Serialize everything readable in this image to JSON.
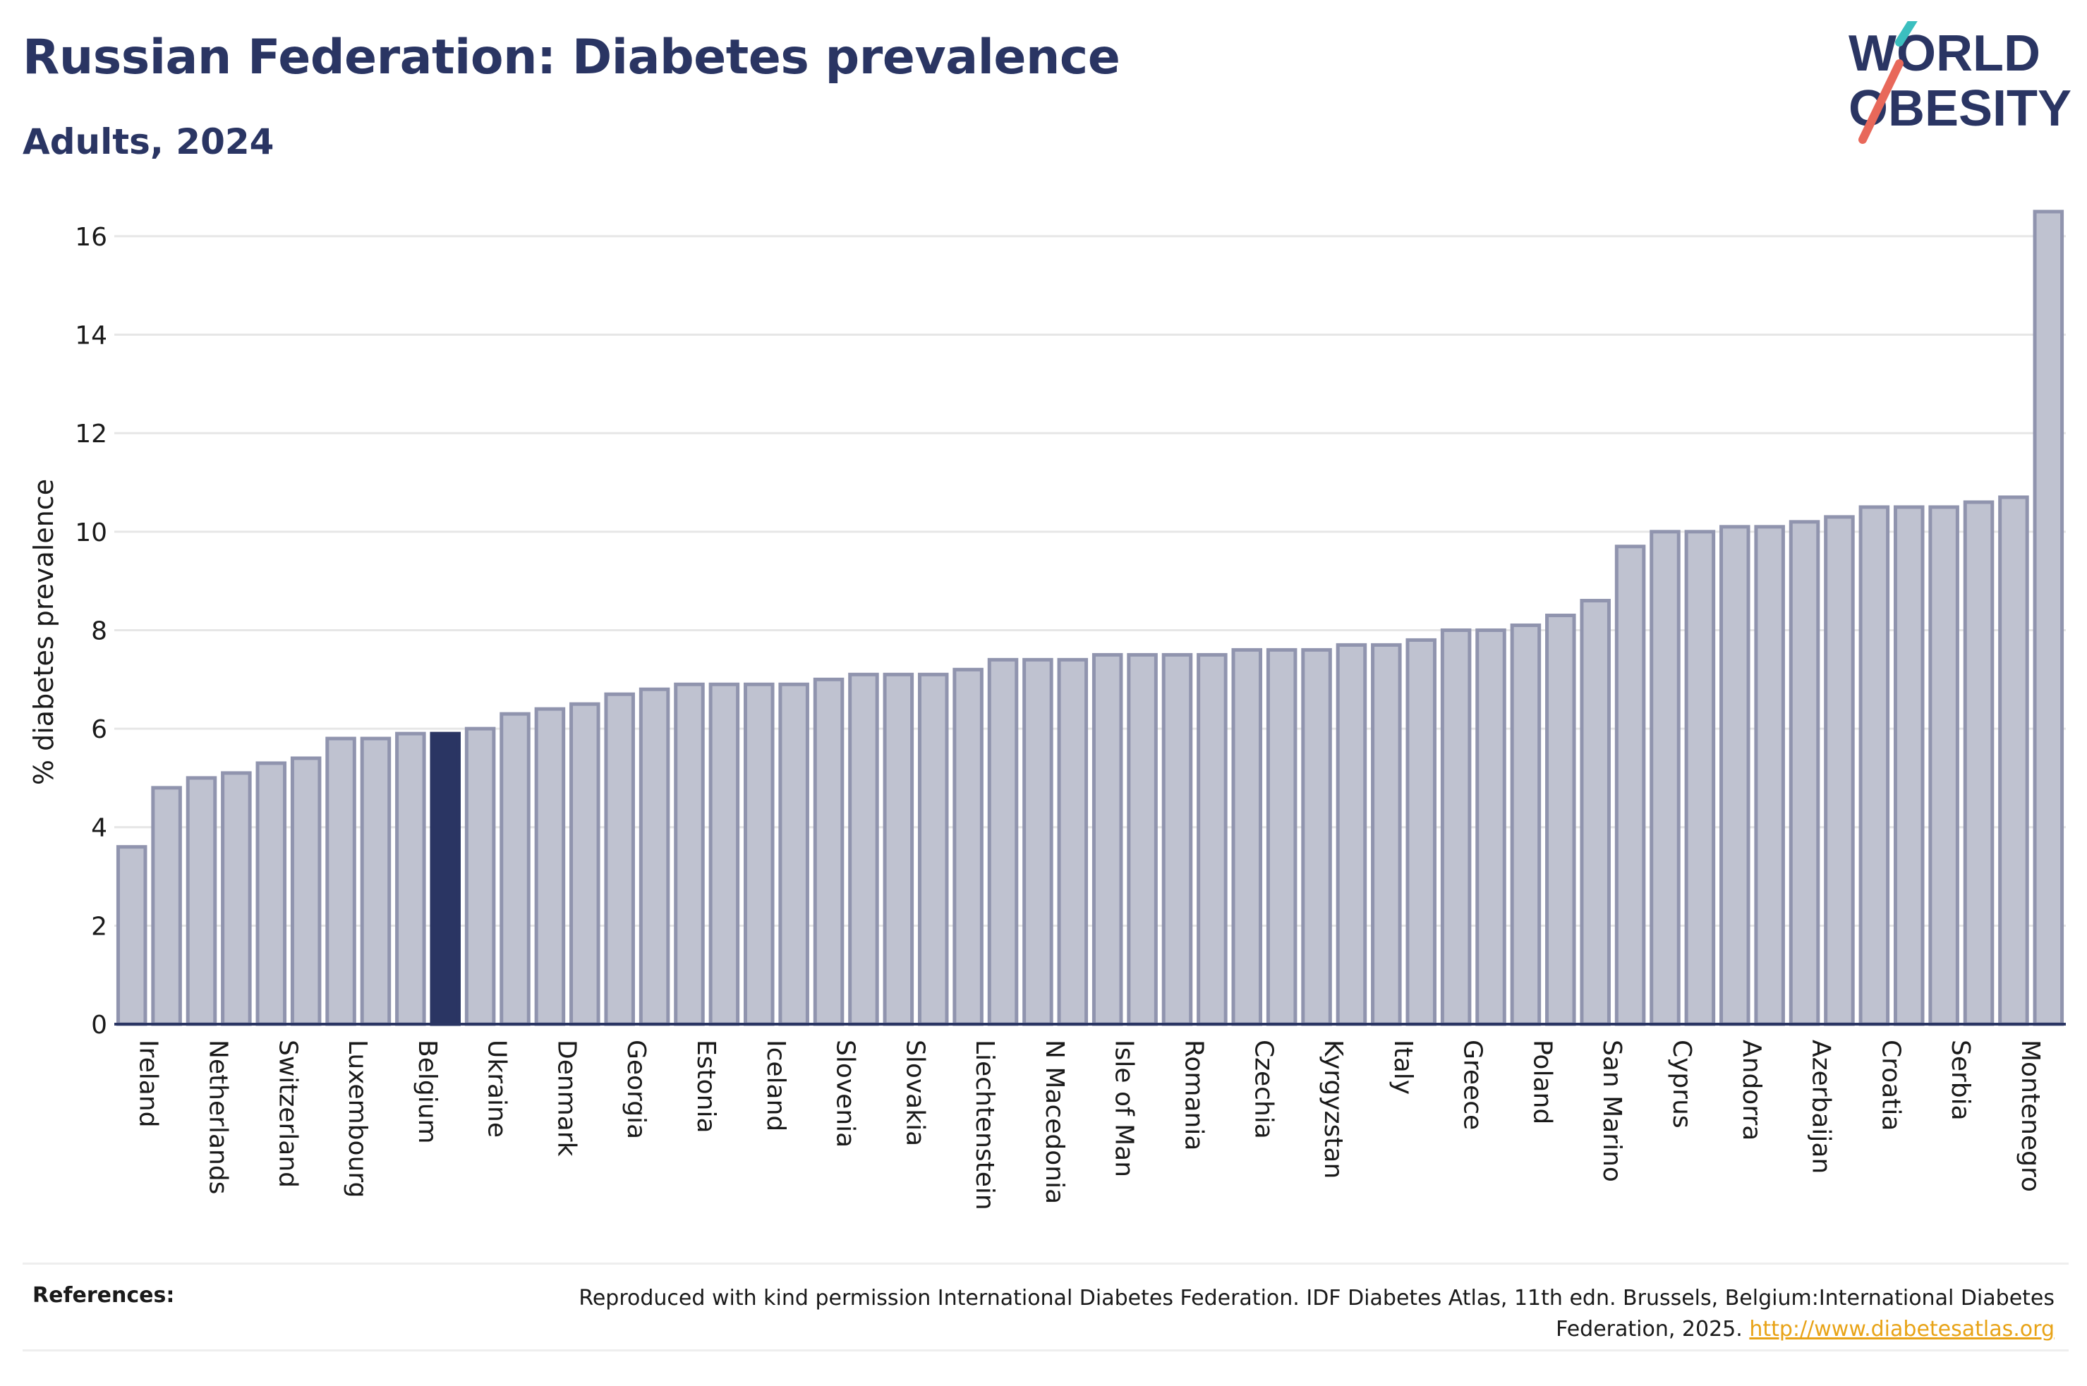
{
  "header": {
    "title": "Russian Federation: Diabetes prevalence",
    "subtitle": "Adults, 2024"
  },
  "logo": {
    "line1": "WORLD",
    "line2": "OBESITY"
  },
  "references": {
    "label": "References:",
    "text": "Reproduced with kind permission International Diabetes Federation. IDF Diabetes Atlas, 11th edn. Brussels, Belgium:International Diabetes Federation, 2025.",
    "link": "http://www.diabetesatlas.org"
  },
  "colors": {
    "bar_fill": "#bfc2d0",
    "bar_stroke": "#9094ae",
    "highlight": "#2a3563",
    "title": "#2a3563",
    "grid": "#e6e6e6",
    "link": "#e8a317"
  },
  "chart_data": {
    "type": "bar",
    "ylabel": "% diabetes prevalence",
    "xlabel": "",
    "ylim": [
      0,
      16.5
    ],
    "yticks": [
      0,
      2,
      4,
      6,
      8,
      10,
      12,
      14,
      16
    ],
    "grid": true,
    "highlight_index": 9,
    "categories": [
      "Ireland",
      "",
      "Netherlands",
      "",
      "Switzerland",
      "",
      "Luxembourg",
      "",
      "Belgium",
      "",
      "Ukraine",
      "",
      "Denmark",
      "",
      "Georgia",
      "",
      "Estonia",
      "",
      "Iceland",
      "",
      "Slovenia",
      "",
      "Slovakia",
      "",
      "Liechtenstein",
      "",
      "N Macedonia",
      "",
      "Isle of Man",
      "",
      "Romania",
      "",
      "Czechia",
      "",
      "Kyrgyzstan",
      "",
      "Italy",
      "",
      "Greece",
      "",
      "Poland",
      "",
      "San Marino",
      "",
      "Cyprus",
      "",
      "Andorra",
      "",
      "Azerbaijan",
      "",
      "Croatia",
      "",
      "Serbia",
      "",
      "Montenegro",
      ""
    ],
    "values": [
      3.6,
      4.8,
      5.0,
      5.1,
      5.3,
      5.4,
      5.8,
      5.8,
      5.9,
      5.9,
      6.0,
      6.3,
      6.4,
      6.5,
      6.7,
      6.8,
      6.9,
      6.9,
      6.9,
      6.9,
      7.0,
      7.1,
      7.1,
      7.1,
      7.2,
      7.4,
      7.4,
      7.4,
      7.5,
      7.5,
      7.5,
      7.5,
      7.6,
      7.6,
      7.6,
      7.7,
      7.7,
      7.8,
      8.0,
      8.0,
      8.1,
      8.3,
      8.6,
      9.7,
      10.0,
      10.0,
      10.1,
      10.1,
      10.2,
      10.3,
      10.5,
      10.5,
      10.5,
      10.6,
      10.7,
      16.5
    ]
  }
}
